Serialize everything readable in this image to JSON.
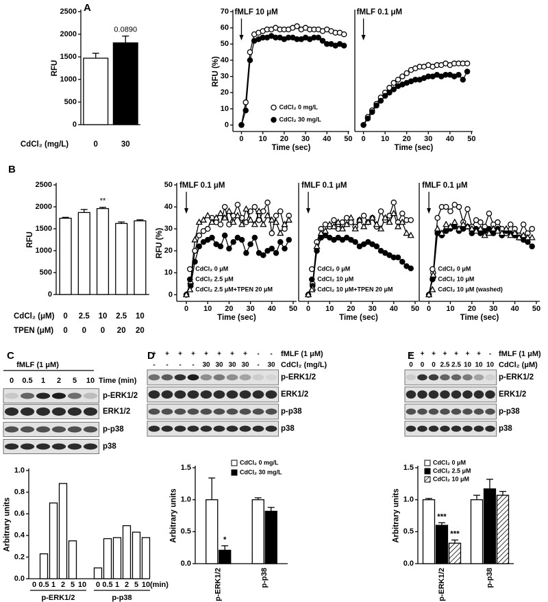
{
  "panel_labels": [
    "A",
    "B",
    "C",
    "D",
    "E"
  ],
  "chart_data": [
    {
      "type": "bar",
      "ylabel": "RFU",
      "xlabel": "CdCl₂ (mg/L)",
      "categories": [
        "0",
        "30"
      ],
      "values": [
        1470,
        1810
      ],
      "errors": [
        110,
        150
      ],
      "colors": [
        "#ffffff",
        "#000000"
      ],
      "ylim": [
        0,
        2500
      ],
      "yticks": [
        0,
        500,
        1000,
        1500,
        2000,
        2500
      ],
      "annotations": [
        {
          "text": "0.0890",
          "category": 1
        }
      ]
    },
    {
      "type": "line",
      "annotation": "fMLF 10 μM",
      "ylabel": "RFU (%)",
      "xlabel": "Time (sec)",
      "legend": "lower center",
      "x": [
        0,
        2,
        4,
        6,
        8,
        10,
        12,
        14,
        16,
        18,
        20,
        22,
        24,
        26,
        28,
        30,
        32,
        34,
        36,
        38,
        40,
        42,
        44,
        46,
        48
      ],
      "xlim": [
        -4,
        50.5
      ],
      "xticks": [
        0,
        10,
        20,
        30,
        40,
        50
      ],
      "ylim": [
        -4,
        70
      ],
      "yticks": [
        0,
        10,
        20,
        30,
        40,
        50,
        60,
        70
      ],
      "series": [
        {
          "name": "CdCl₂ 0 mg/L",
          "color": "#000000",
          "marker": "open",
          "values": [
            0,
            14,
            45,
            56,
            57,
            58,
            59,
            59,
            60,
            59,
            59,
            59,
            60,
            61,
            59,
            60,
            59,
            59,
            59,
            58,
            59,
            58,
            57,
            57,
            56
          ]
        },
        {
          "name": "CdCl₂ 30 mg/L",
          "color": "#000000",
          "marker": "filled",
          "values": [
            0,
            9,
            40,
            52,
            53,
            54,
            54,
            55,
            54,
            54,
            53,
            54,
            54,
            53,
            53,
            54,
            53,
            54,
            54,
            52,
            50,
            50,
            49,
            50,
            49
          ]
        }
      ]
    },
    {
      "type": "line",
      "annotation": "fMLF 0.1 μM",
      "xlabel": "Time (sec)",
      "x": [
        0,
        2,
        4,
        6,
        8,
        10,
        12,
        14,
        16,
        18,
        20,
        22,
        24,
        26,
        28,
        30,
        32,
        34,
        36,
        38,
        40,
        42,
        44,
        46,
        48
      ],
      "xlim": [
        -4,
        50.5
      ],
      "xticks": [
        0,
        10,
        20,
        30,
        40,
        50
      ],
      "ylim": [
        -4,
        70
      ],
      "series": [
        {
          "color": "#000000",
          "marker": "open",
          "values": [
            0,
            5,
            9,
            13,
            17,
            20,
            23,
            26,
            28,
            30,
            32,
            34,
            35,
            36,
            36,
            37,
            36,
            37,
            37,
            38,
            37,
            38,
            38,
            38,
            38
          ]
        },
        {
          "color": "#000000",
          "marker": "filled",
          "values": [
            0,
            4,
            8,
            12,
            15,
            18,
            20,
            22,
            24,
            25,
            26,
            27,
            28,
            28,
            29,
            30,
            30,
            31,
            30,
            31,
            31,
            30,
            31,
            28,
            33
          ]
        }
      ]
    },
    {
      "type": "bar",
      "ylabel": "RFU",
      "category_rows": [
        {
          "label": "CdCl₂ (μM)",
          "values": [
            "0",
            "2.5",
            "10",
            "2.5",
            "10"
          ]
        },
        {
          "label": "TPEN (μM)",
          "values": [
            "0",
            "0",
            "0",
            "20",
            "20"
          ]
        }
      ],
      "values": [
        1740,
        1870,
        1960,
        1620,
        1680
      ],
      "errors": [
        20,
        70,
        30,
        35,
        25
      ],
      "colors": [
        "#ffffff",
        "#ffffff",
        "#ffffff",
        "#ffffff",
        "#ffffff"
      ],
      "ylim": [
        0,
        2500
      ],
      "yticks": [
        0,
        500,
        1000,
        1500,
        2000,
        2500
      ],
      "annotations": [
        {
          "text": "**",
          "category": 2
        }
      ]
    },
    {
      "type": "line",
      "annotation": "fMLF 0.1 μM",
      "ylabel": "RFU (%)",
      "xlabel": "Time (sec)",
      "legend": "lower left",
      "x": [
        0,
        2,
        4,
        6,
        8,
        10,
        12,
        14,
        16,
        18,
        20,
        22,
        24,
        26,
        28,
        30,
        32,
        34,
        36,
        38,
        40,
        42,
        44,
        46,
        48
      ],
      "xlim": [
        -4.5,
        51.6
      ],
      "xticks": [
        0,
        10,
        20,
        30,
        40,
        50
      ],
      "ylim": [
        -3,
        50
      ],
      "yticks": [
        0,
        10,
        20,
        30,
        40,
        50
      ],
      "series": [
        {
          "name": "CdCl₂ 0 μM",
          "color": "#000000",
          "marker": "open",
          "values": [
            0,
            5,
            20,
            27,
            29,
            30,
            35,
            33,
            32,
            40,
            32,
            36,
            41,
            35,
            33,
            38,
            40,
            34,
            38,
            42,
            28,
            36,
            38,
            30,
            36
          ]
        },
        {
          "name": "CdCl₂ 2.5 μM",
          "color": "#000000",
          "marker": "filled",
          "values": [
            0,
            4,
            15,
            22,
            24,
            25,
            26,
            23,
            22,
            27,
            21,
            24,
            26,
            25,
            19,
            23,
            26,
            19,
            18,
            20,
            21,
            19,
            24,
            21,
            25
          ]
        },
        {
          "name": "CdCl₂ 2.5 μM+TPEN 20 μM",
          "color": "#000000",
          "marker": "triangle",
          "values": [
            0,
            6,
            25,
            33,
            34,
            36,
            33,
            35,
            37,
            35,
            38,
            33,
            36,
            32,
            39,
            34,
            32,
            38,
            32,
            36,
            34,
            33,
            28,
            32,
            34
          ]
        }
      ]
    },
    {
      "type": "line",
      "annotation": "fMLF 0.1 μM",
      "xlabel": "Time (sec)",
      "legend": "lower left",
      "x": [
        0,
        2,
        4,
        6,
        8,
        10,
        12,
        14,
        16,
        18,
        20,
        22,
        24,
        26,
        28,
        30,
        32,
        34,
        36,
        38,
        40,
        42,
        44,
        46,
        48
      ],
      "xlim": [
        -4.5,
        51.6
      ],
      "xticks": [
        0,
        10,
        20,
        30,
        40,
        50
      ],
      "ylim": [
        -3,
        50
      ],
      "series": [
        {
          "name": "CdCl₂ 0 μM",
          "color": "#000000",
          "marker": "open",
          "values": [
            0,
            5,
            24,
            30,
            32,
            31,
            34,
            30,
            33,
            35,
            33,
            31,
            34,
            36,
            33,
            35,
            31,
            38,
            34,
            36,
            42,
            33,
            37,
            34,
            34
          ]
        },
        {
          "name": "CdCl₂ 10 μM",
          "color": "#000000",
          "marker": "filled",
          "values": [
            0,
            4,
            20,
            26,
            27,
            26,
            25,
            26,
            25,
            26,
            25,
            24,
            22,
            23,
            24,
            23,
            22,
            20,
            19,
            18,
            17,
            17,
            15,
            13,
            12
          ]
        },
        {
          "name": "CdCl₂ 10 μM+TPEN 20 μM",
          "color": "#000000",
          "marker": "triangle",
          "values": [
            0,
            3,
            22,
            28,
            29,
            32,
            31,
            33,
            30,
            32,
            35,
            30,
            34,
            31,
            33,
            35,
            32,
            30,
            35,
            33,
            37,
            31,
            33,
            28,
            27
          ]
        }
      ]
    },
    {
      "type": "line",
      "annotation": "fMLF 0.1 μM",
      "xlabel": "Time (sec)",
      "legend": "lower left",
      "x": [
        0,
        2,
        4,
        6,
        8,
        10,
        12,
        14,
        16,
        18,
        20,
        22,
        24,
        26,
        28,
        30,
        32,
        34,
        36,
        38,
        40,
        42,
        44,
        46,
        48
      ],
      "xlim": [
        -4.5,
        51.6
      ],
      "xticks": [
        0,
        10,
        20,
        30,
        40,
        50
      ],
      "ylim": [
        -3,
        50
      ],
      "series": [
        {
          "name": "CdCl₂ 0 μM",
          "color": "#000000",
          "marker": "open",
          "values": [
            0,
            10,
            35,
            40,
            40,
            38,
            41,
            40,
            33,
            39,
            31,
            34,
            33,
            31,
            37,
            32,
            33,
            30,
            28,
            32,
            30,
            27,
            32,
            28,
            30
          ]
        },
        {
          "name": "CdCl₂ 10 μM",
          "color": "#000000",
          "marker": "filled",
          "values": [
            0,
            8,
            28,
            27,
            29,
            30,
            31,
            29,
            30,
            31,
            28,
            30,
            28,
            29,
            30,
            28,
            30,
            27,
            29,
            28,
            27,
            26,
            25,
            24,
            22
          ]
        },
        {
          "name": "CdCl₂ 10 μM (washed)",
          "color": "#000000",
          "marker": "triangle",
          "values": [
            0,
            9,
            30,
            28,
            32,
            31,
            33,
            30,
            32,
            31,
            30,
            29,
            30,
            27,
            28,
            30,
            29,
            28,
            30,
            27,
            28,
            26,
            27,
            26,
            26
          ]
        }
      ]
    },
    {
      "type": "bar",
      "ylabel": "Arbitrary units",
      "color": "#ffffff",
      "xunit": "(min)",
      "groups": [
        {
          "name": "p-ERK1/2",
          "categories": [
            "0",
            "0.5",
            "1",
            "2",
            "5",
            "10"
          ],
          "values": [
            0,
            0.23,
            0.7,
            0.88,
            0.35,
            0
          ]
        },
        {
          "name": "p-p38",
          "categories": [
            "0",
            "0.5",
            "1",
            "2",
            "5",
            "10"
          ],
          "values": [
            0.1,
            0.37,
            0.38,
            0.49,
            0.43,
            0.38
          ]
        }
      ],
      "ylim": [
        0,
        1.0
      ],
      "yticks": [
        {
          "value": 0,
          "label": "0.0"
        },
        0.2,
        0.4,
        0.6,
        0.8,
        {
          "value": 1,
          "label": "1.0"
        }
      ]
    },
    {
      "type": "grouped_bar",
      "ylabel": "Arbitrary units",
      "legend": "upper right",
      "categories": [
        "p-ERK1/2",
        "p-p38"
      ],
      "series": [
        {
          "name": "CdCl₂ 0 mg/L",
          "color": "#ffffff",
          "values": [
            1.0,
            1.0
          ],
          "errors": [
            0.34,
            0.03
          ]
        },
        {
          "name": "CdCl₂ 30 mg/L",
          "color": "#000000",
          "values": [
            0.21,
            0.82
          ],
          "errors": [
            0.07,
            0.06
          ]
        }
      ],
      "ylim": [
        0,
        1.5
      ],
      "yticks": [
        {
          "value": 0,
          "label": "0.0"
        },
        0.5,
        {
          "value": 1,
          "label": "1.0"
        },
        1.5
      ],
      "annotations": [
        {
          "text": "*",
          "series": 1,
          "category": 0
        }
      ]
    },
    {
      "type": "grouped_bar",
      "ylabel": "Arbitrary units",
      "legend": "upper left",
      "categories": [
        "p-ERK1/2",
        "p-p38"
      ],
      "series": [
        {
          "name": "CdCl₂ 0 μM",
          "color": "#ffffff",
          "values": [
            1.0,
            1.0
          ],
          "errors": [
            0.02,
            0.07
          ]
        },
        {
          "name": "CdCl₂ 2.5 μM",
          "color": "#000000",
          "values": [
            0.6,
            1.17
          ],
          "errors": [
            0.04,
            0.15
          ]
        },
        {
          "name": "CdCl₂ 10 μM",
          "color": "#ffffff",
          "pattern": "hatch",
          "values": [
            0.32,
            1.07
          ],
          "errors": [
            0.05,
            0.06
          ]
        }
      ],
      "ylim": [
        0,
        1.5
      ],
      "yticks": [
        {
          "value": 0,
          "label": "0.0"
        },
        0.5,
        {
          "value": 1,
          "label": "1.0"
        },
        1.5
      ],
      "annotations": [
        {
          "text": "***",
          "series": 1,
          "category": 0
        },
        {
          "text": "***",
          "series": 2,
          "category": 0
        }
      ]
    }
  ],
  "blots": [
    {
      "header": "fMLF (1 μM)",
      "lanes": [
        "0",
        "0.5",
        "1",
        "2",
        "5",
        "10"
      ],
      "lane_label": "Time (min)",
      "rows": [
        "p-ERK1/2",
        "ERK1/2",
        "p-p38",
        "p38"
      ]
    },
    {
      "conditions": [
        {
          "label": "fMLF (1 μM)",
          "values": [
            "+",
            "+",
            "+",
            "+",
            "+",
            "+",
            "+",
            "+",
            "-",
            "-"
          ]
        },
        {
          "label": "CdCl₂ (mg/L)",
          "values": [
            "-",
            "-",
            "-",
            "-",
            "30",
            "30",
            "30",
            "30",
            "-",
            "30"
          ]
        }
      ],
      "rows": [
        "p-ERK1/2",
        "ERK1/2",
        "p-p38",
        "p38"
      ]
    },
    {
      "conditions": [
        {
          "label": "fMLF (1 μM)",
          "values": [
            "-",
            "+",
            "+",
            "+",
            "+",
            "+",
            "+",
            "-"
          ]
        },
        {
          "label": "CdCl₂ (μM)",
          "values": [
            "0",
            "0",
            "0",
            "2.5",
            "2.5",
            "10",
            "10",
            "10"
          ]
        }
      ],
      "rows": [
        "p-ERK1/2",
        "ERK1/2",
        "p-p38",
        "p38"
      ]
    }
  ]
}
